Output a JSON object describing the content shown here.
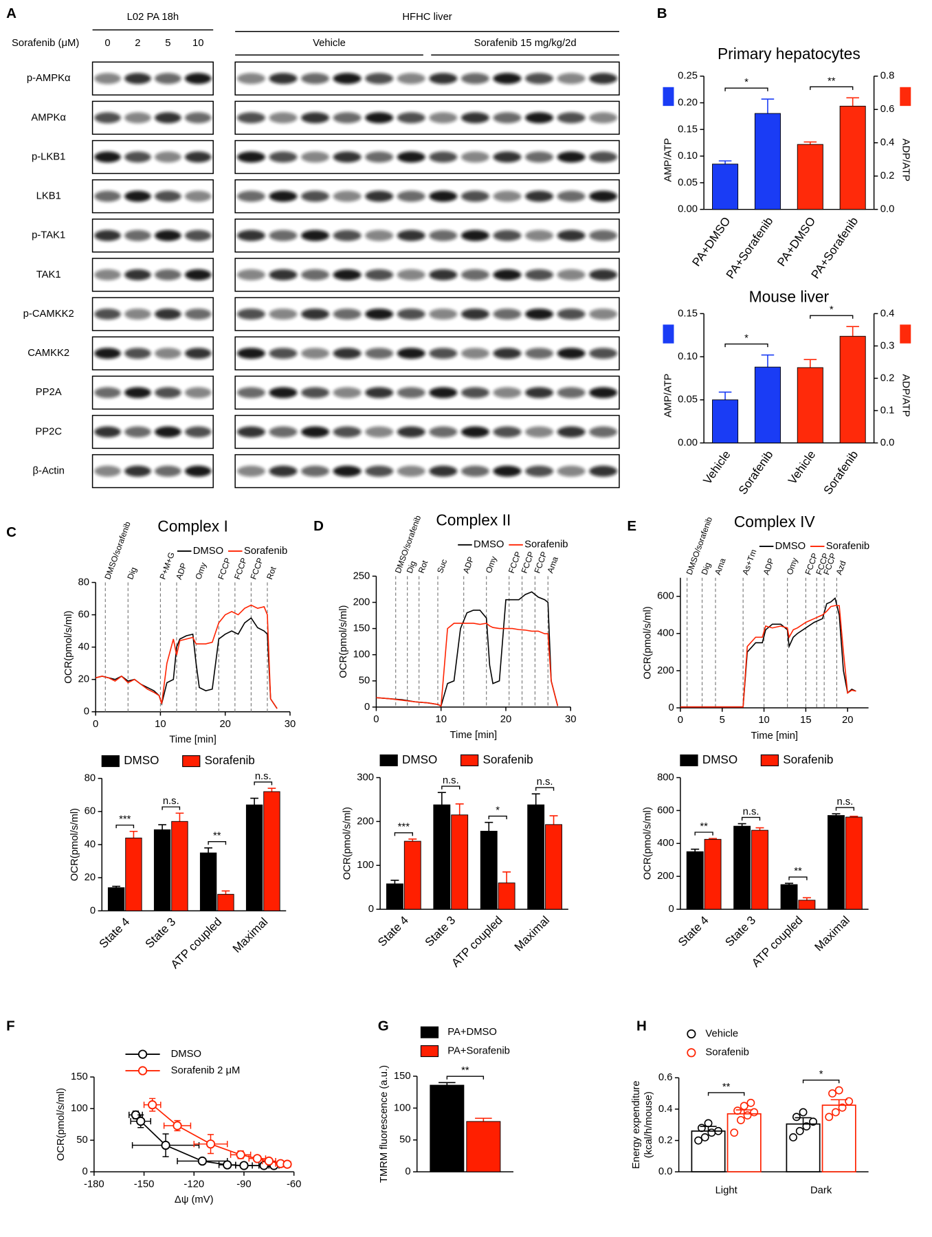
{
  "blot": {
    "label": "A",
    "left_group": "L02 PA 18h",
    "dose_label": "Sorafenib (μM)",
    "doses": [
      0,
      2,
      5,
      10
    ],
    "right_group": "HFHC liver",
    "right_subgroups": [
      "Vehicle",
      "Sorafenib 15 mg/kg/2d"
    ],
    "rows": [
      "p-AMPKα",
      "AMPKα",
      "p-LKB1",
      "LKB1",
      "p-TAK1",
      "TAK1",
      "p-CAMKK2",
      "CAMKK2",
      "PP2A",
      "PP2C",
      "β-Actin"
    ]
  },
  "chart_data": [
    {
      "type": "bar",
      "panel": "B",
      "title": "Primary hepatocytes",
      "ylabel": "AMP/ATP",
      "y2label": "ADP/ATP",
      "axis_swatches": true,
      "xtick_rotation": 55,
      "categories": [
        "PA+DMSO",
        "PA+Sorafenib",
        "PA+DMSO",
        "PA+Sorafenib"
      ],
      "series": [
        {
          "color": "#1a3cf5",
          "values": [
            0.085,
            0.18,
            null,
            null
          ],
          "errors": [
            0.006,
            0.027,
            null,
            null
          ],
          "significance": "*"
        },
        {
          "color": "#ff2a0a",
          "axis": "y2",
          "values": [
            null,
            null,
            0.39,
            0.62
          ],
          "errors": [
            null,
            null,
            0.015,
            0.05
          ],
          "significance": "**"
        }
      ],
      "ylim": [
        0,
        0.25
      ],
      "yticks": [
        {
          "value": 0,
          "label": "0.00"
        },
        0.05,
        {
          "value": 0.1,
          "label": "0.10"
        },
        0.15,
        {
          "value": 0.2,
          "label": "0.20"
        },
        0.25
      ],
      "y2lim": [
        0,
        0.8
      ],
      "y2ticks": [
        {
          "value": 0,
          "label": "0.0"
        },
        0.2,
        0.4,
        0.6,
        0.8
      ]
    },
    {
      "type": "bar",
      "title": "Mouse liver",
      "ylabel": "AMP/ATP",
      "y2label": "ADP/ATP",
      "axis_swatches": true,
      "xtick_rotation": 55,
      "categories": [
        "Vehicle",
        "Sorafenib",
        "Vehicle",
        "Sorafenib"
      ],
      "series": [
        {
          "color": "#1a3cf5",
          "values": [
            0.05,
            0.088,
            null,
            null
          ],
          "errors": [
            0.009,
            0.014,
            null,
            null
          ],
          "significance": "*"
        },
        {
          "color": "#ff2a0a",
          "axis": "y2",
          "values": [
            null,
            null,
            0.233,
            0.33
          ],
          "errors": [
            null,
            null,
            0.025,
            0.03
          ],
          "significance": "*"
        }
      ],
      "ylim": [
        0,
        0.15
      ],
      "yticks": [
        {
          "value": 0,
          "label": "0.00"
        },
        0.05,
        {
          "value": 0.1,
          "label": "0.10"
        },
        0.15
      ],
      "y2lim": [
        0,
        0.4
      ],
      "y2ticks": [
        {
          "value": 0,
          "label": "0.0"
        },
        0.1,
        0.2,
        0.3,
        0.4
      ]
    },
    {
      "type": "line",
      "panel": "C",
      "title": "Complex I",
      "xlabel": "Time [min]",
      "ylabel": "OCR(pmol/s/ml)",
      "legend": "top",
      "x": [
        0,
        1,
        2,
        3,
        4,
        5,
        6,
        7,
        8,
        9,
        9.8,
        10.2,
        11,
        12,
        12.5,
        13,
        14,
        15,
        15.5,
        16,
        17,
        18,
        19,
        20,
        21,
        22,
        23,
        24,
        25,
        26,
        26.5,
        27,
        28
      ],
      "series": [
        {
          "name": "DMSO",
          "color": "#000000",
          "values": [
            21,
            22,
            21,
            20,
            22,
            19,
            20,
            17,
            15,
            13,
            10,
            5,
            18,
            20,
            40,
            45,
            47,
            48,
            30,
            15,
            13,
            14,
            45,
            48,
            50,
            48,
            55,
            58,
            52,
            50,
            48,
            8,
            2
          ]
        },
        {
          "name": "Sorafenib",
          "color": "#ff2200",
          "values": [
            21,
            22,
            21,
            19,
            22,
            18,
            20,
            17,
            14,
            12,
            10,
            5,
            30,
            45,
            35,
            44,
            45,
            46,
            42,
            42,
            42,
            43,
            55,
            60,
            62,
            60,
            64,
            66,
            64,
            65,
            60,
            8,
            2
          ]
        }
      ],
      "events": [
        {
          "label": "DMSO/sorafenib",
          "x": 1.5
        },
        {
          "label": "Dig",
          "x": 5
        },
        {
          "label": "P+M+G",
          "x": 10
        },
        {
          "label": "ADP",
          "x": 12.5
        },
        {
          "label": "Omy",
          "x": 15.5
        },
        {
          "label": "FCCP",
          "x": 19
        },
        {
          "label": "FCCP",
          "x": 21.5
        },
        {
          "label": "FCCP",
          "x": 24
        },
        {
          "label": "Rot",
          "x": 26.5
        }
      ],
      "xlim": [
        0,
        30
      ],
      "xticks": [
        0,
        10,
        20,
        30
      ],
      "ylim": [
        0,
        80
      ],
      "yticks": [
        0,
        20,
        40,
        60,
        80
      ]
    },
    {
      "type": "line",
      "panel": "D",
      "title": "Complex II",
      "xlabel": "Time [min]",
      "ylabel": "OCR(pmol/s/ml)",
      "legend": "top",
      "x": [
        0,
        2,
        4,
        6,
        8,
        9.5,
        10,
        11,
        12,
        13,
        14,
        15,
        16,
        17,
        17.5,
        18,
        19,
        20,
        21,
        22,
        23,
        24,
        25,
        26,
        26.5,
        27,
        28
      ],
      "series": [
        {
          "name": "DMSO",
          "color": "#000000",
          "values": [
            18,
            16,
            14,
            10,
            8,
            5,
            2,
            45,
            50,
            150,
            180,
            185,
            185,
            170,
            80,
            45,
            50,
            205,
            205,
            205,
            215,
            220,
            210,
            205,
            200,
            50,
            2
          ]
        },
        {
          "name": "Sorafenib",
          "color": "#ff2200",
          "values": [
            18,
            16,
            13,
            10,
            8,
            5,
            2,
            150,
            160,
            160,
            160,
            160,
            158,
            160,
            155,
            152,
            150,
            150,
            150,
            148,
            147,
            145,
            145,
            140,
            140,
            50,
            2
          ]
        }
      ],
      "events": [
        {
          "label": "DMSO/sorafenib",
          "x": 3
        },
        {
          "label": "Dig",
          "x": 4.8
        },
        {
          "label": "Rot",
          "x": 6.6
        },
        {
          "label": "Suc",
          "x": 9.5
        },
        {
          "label": "ADP",
          "x": 13.5
        },
        {
          "label": "Omy",
          "x": 17
        },
        {
          "label": "FCCP",
          "x": 20.5
        },
        {
          "label": "FCCP",
          "x": 22.5
        },
        {
          "label": "FCCP",
          "x": 24.5
        },
        {
          "label": "Ama",
          "x": 26.5
        }
      ],
      "xlim": [
        0,
        30
      ],
      "xticks": [
        0,
        10,
        20,
        30
      ],
      "ylim": [
        0,
        250
      ],
      "yticks": [
        0,
        50,
        100,
        150,
        200,
        250
      ]
    },
    {
      "type": "line",
      "panel": "E",
      "title": "Complex IV",
      "xlabel": "Time [min]",
      "ylabel": "OCR(pmol/s/ml)",
      "legend": "top",
      "x": [
        0,
        2,
        4,
        6,
        7.5,
        8,
        9,
        9.8,
        10.2,
        11,
        12,
        12.8,
        13,
        13.5,
        14,
        15,
        16,
        17,
        17.5,
        18,
        18.5,
        19,
        19.5,
        20,
        20.5,
        21
      ],
      "series": [
        {
          "name": "DMSO",
          "color": "#000000",
          "values": [
            5,
            5,
            5,
            5,
            5,
            300,
            350,
            350,
            420,
            450,
            450,
            420,
            330,
            380,
            400,
            430,
            460,
            480,
            560,
            570,
            590,
            500,
            200,
            80,
            100,
            90
          ]
        },
        {
          "name": "Sorafenib",
          "color": "#ff2200",
          "values": [
            5,
            5,
            5,
            5,
            5,
            330,
            380,
            380,
            440,
            430,
            440,
            430,
            380,
            420,
            430,
            460,
            480,
            500,
            520,
            545,
            550,
            550,
            300,
            80,
            95,
            90
          ]
        }
      ],
      "events": [
        {
          "label": "DMSO/sorafenib",
          "x": 0.8
        },
        {
          "label": "Dig",
          "x": 2.6
        },
        {
          "label": "Ama",
          "x": 4.2
        },
        {
          "label": "As+Tm",
          "x": 7.5
        },
        {
          "label": "ADP",
          "x": 10
        },
        {
          "label": "Omy",
          "x": 12.8
        },
        {
          "label": "FCCP",
          "x": 15
        },
        {
          "label": "FCCP",
          "x": 16.3
        },
        {
          "label": "FCCP",
          "x": 17.2
        },
        {
          "label": "Azd",
          "x": 18.7
        }
      ],
      "xlim": [
        0,
        22.5
      ],
      "xticks": [
        0,
        5,
        10,
        15,
        20
      ],
      "ylim": [
        0,
        700
      ],
      "yticks": [
        0,
        200,
        400,
        600
      ]
    },
    {
      "type": "bar",
      "ylabel": "OCR(pmol/s/ml)",
      "legend": "top",
      "xtick_rotation": 45,
      "categories": [
        "State 4",
        "State 3",
        "ATP coupled",
        "Maximal"
      ],
      "series": [
        {
          "name": "DMSO",
          "color": "#000000",
          "values": [
            14,
            49,
            35,
            64
          ],
          "errors": [
            0.8,
            3,
            3,
            4
          ]
        },
        {
          "name": "Sorafenib",
          "color": "#ff1f00",
          "values": [
            44,
            54,
            10,
            72
          ],
          "errors": [
            4,
            5,
            2,
            2
          ]
        }
      ],
      "significance": [
        "***",
        "n.s.",
        "**",
        "n.s."
      ],
      "ylim": [
        0,
        80
      ],
      "yticks": [
        0,
        20,
        40,
        60,
        80
      ]
    },
    {
      "type": "bar",
      "ylabel": "OCR(pmol/s/ml)",
      "legend": "top",
      "xtick_rotation": 45,
      "categories": [
        "State 4",
        "State 3",
        "ATP coupled",
        "Maximal"
      ],
      "series": [
        {
          "name": "DMSO",
          "color": "#000000",
          "values": [
            58,
            238,
            178,
            238
          ],
          "errors": [
            8,
            28,
            20,
            25
          ]
        },
        {
          "name": "Sorafenib",
          "color": "#ff1f00",
          "values": [
            155,
            215,
            60,
            193
          ],
          "errors": [
            5,
            25,
            25,
            20
          ]
        }
      ],
      "significance": [
        "***",
        "n.s.",
        "*",
        "n.s."
      ],
      "ylim": [
        0,
        300
      ],
      "yticks": [
        0,
        100,
        200,
        300
      ]
    },
    {
      "type": "bar",
      "ylabel": "OCR(pmol/s/ml)",
      "legend": "top",
      "xtick_rotation": 45,
      "categories": [
        "State 4",
        "State 3",
        "ATP coupled",
        "Maximal"
      ],
      "series": [
        {
          "name": "DMSO",
          "color": "#000000",
          "values": [
            350,
            505,
            150,
            570
          ],
          "errors": [
            15,
            15,
            8,
            10
          ]
        },
        {
          "name": "Sorafenib",
          "color": "#ff1f00",
          "values": [
            425,
            480,
            55,
            560
          ],
          "errors": [
            5,
            15,
            15,
            5
          ]
        }
      ],
      "significance": [
        "**",
        "n.s.",
        "**",
        "n.s."
      ],
      "ylim": [
        0,
        800
      ],
      "yticks": [
        0,
        200,
        400,
        600,
        800
      ]
    },
    {
      "type": "scatter",
      "panel": "F",
      "xlabel": "Δψ (mV)",
      "ylabel": "OCR(pmol/s/ml)",
      "legend": "top-left",
      "series": [
        {
          "name": "DMSO",
          "color": "#000000",
          "x": [
            -155,
            -152,
            -137,
            -115,
            -100,
            -90,
            -78,
            -72
          ],
          "xerr": [
            4,
            6,
            20,
            15,
            5,
            5,
            3,
            3
          ],
          "values": [
            90,
            80,
            42,
            17,
            11,
            10,
            10,
            10
          ],
          "errors": [
            6,
            10,
            18,
            2,
            2,
            2,
            2,
            2
          ]
        },
        {
          "name": "Sorafenib 2 μM",
          "color": "#ff2200",
          "x": [
            -145,
            -130,
            -110,
            -92,
            -82,
            -75,
            -68,
            -64
          ],
          "xerr": [
            5,
            8,
            10,
            6,
            5,
            4,
            3,
            2
          ],
          "values": [
            106,
            73,
            44,
            27,
            21,
            17,
            13,
            12
          ],
          "errors": [
            10,
            8,
            15,
            6,
            4,
            3,
            3,
            2
          ]
        }
      ],
      "xlim": [
        -180,
        -60
      ],
      "xticks": [
        -180,
        -150,
        -120,
        -90,
        -60
      ],
      "ylim": [
        0,
        150
      ],
      "yticks": [
        0,
        50,
        100,
        150
      ]
    },
    {
      "type": "bar",
      "panel": "G",
      "ylabel": "TMRM fluorescence (a.u.)",
      "legend": "top-left",
      "xtick_rotation": 0,
      "categories": [
        null
      ],
      "series": [
        {
          "name": "PA+DMSO",
          "color": "#000000",
          "values": [
            136
          ],
          "errors": [
            4
          ]
        },
        {
          "name": "PA+Sorafenib",
          "color": "#ff1f00",
          "values": [
            79
          ],
          "errors": [
            5
          ]
        }
      ],
      "significance": [
        "**"
      ],
      "ylim": [
        0,
        150
      ],
      "yticks": [
        0,
        50,
        100,
        150
      ]
    },
    {
      "type": "bar",
      "panel": "H",
      "ylabel": [
        "Energy expenditure",
        "(kcal/h/mouse)"
      ],
      "legend": "top-left",
      "bar_style": "outline",
      "xtick_rotation": 0,
      "categories": [
        "Light",
        "Dark"
      ],
      "series": [
        {
          "name": "Vehicle",
          "color": "#000000",
          "values": [
            0.26,
            0.305
          ],
          "errors": [
            0.03,
            0.04
          ],
          "points": [
            [
              0.2,
              0.22,
              0.25,
              0.26,
              0.28,
              0.31
            ],
            [
              0.22,
              0.26,
              0.29,
              0.32,
              0.35,
              0.38
            ]
          ]
        },
        {
          "name": "Sorafenib",
          "color": "#ff2200",
          "values": [
            0.37,
            0.425
          ],
          "errors": [
            0.025,
            0.035
          ],
          "points": [
            [
              0.25,
              0.33,
              0.36,
              0.38,
              0.39,
              0.42,
              0.44
            ],
            [
              0.35,
              0.38,
              0.41,
              0.45,
              0.5,
              0.52
            ]
          ]
        }
      ],
      "significance": [
        "**",
        "*"
      ],
      "ylim": [
        0,
        0.6
      ],
      "yticks": [
        {
          "value": 0,
          "label": "0.0"
        },
        0.2,
        0.4,
        0.6
      ]
    }
  ]
}
